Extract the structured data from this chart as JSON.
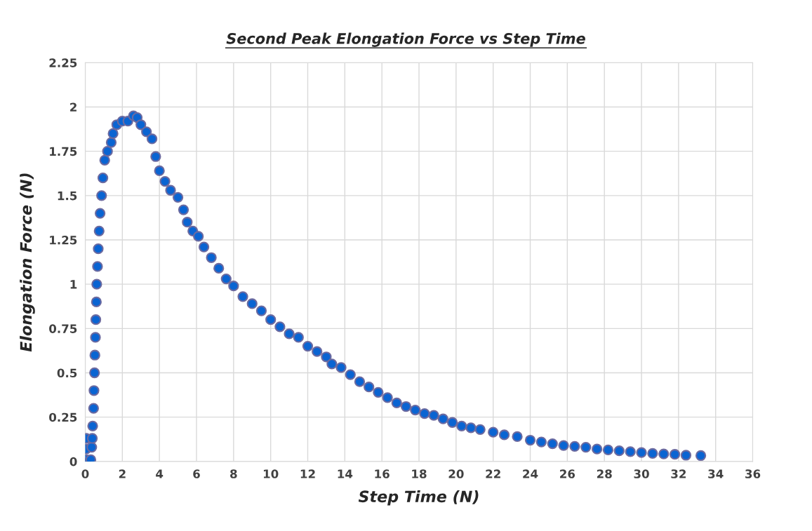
{
  "chart_data": {
    "type": "scatter",
    "title": "Second Peak Elongation Force vs Step Time",
    "xlabel": "Step Time (N)",
    "ylabel": "Elongation Force (N)",
    "xlim": [
      0,
      36
    ],
    "xticks": [
      0,
      2,
      4,
      6,
      8,
      10,
      12,
      14,
      16,
      18,
      20,
      22,
      24,
      26,
      28,
      30,
      32,
      34,
      36
    ],
    "ylim": [
      0,
      2.25
    ],
    "yticks": [
      0,
      0.25,
      0.5,
      0.75,
      1,
      1.25,
      1.5,
      1.75,
      2,
      2.25
    ],
    "grid": true,
    "marker": "circle",
    "series": [
      {
        "color": "#0a64d2",
        "x": [
          0.05,
          0.05,
          0.05,
          0.2,
          0.3,
          0.35,
          0.38,
          0.4,
          0.45,
          0.47,
          0.5,
          0.52,
          0.55,
          0.57,
          0.6,
          0.62,
          0.66,
          0.7,
          0.75,
          0.8,
          0.88,
          0.95,
          1.05,
          1.2,
          1.4,
          1.5,
          1.7,
          2.0,
          2.3,
          2.6,
          2.8,
          3.0,
          3.3,
          3.6,
          3.8,
          4.0,
          4.3,
          4.6,
          5.0,
          5.3,
          5.5,
          5.8,
          6.1,
          6.4,
          6.8,
          7.2,
          7.6,
          8.0,
          8.5,
          9.0,
          9.5,
          10.0,
          10.5,
          11.0,
          11.5,
          12.0,
          12.5,
          13.0,
          13.3,
          13.8,
          14.3,
          14.8,
          15.3,
          15.8,
          16.3,
          16.8,
          17.3,
          17.8,
          18.3,
          18.8,
          19.3,
          19.8,
          20.3,
          20.8,
          21.3,
          22.0,
          22.6,
          23.3,
          24.0,
          24.6,
          25.2,
          25.8,
          26.4,
          27.0,
          27.6,
          28.2,
          28.8,
          29.4,
          30.0,
          30.6,
          31.2,
          31.8,
          32.4,
          33.2
        ],
        "values": [
          0.13,
          0.07,
          0.01,
          0.0,
          0.01,
          0.08,
          0.13,
          0.2,
          0.3,
          0.4,
          0.5,
          0.6,
          0.7,
          0.8,
          0.9,
          1.0,
          1.1,
          1.2,
          1.3,
          1.4,
          1.5,
          1.6,
          1.7,
          1.75,
          1.8,
          1.85,
          1.9,
          1.92,
          1.92,
          1.95,
          1.94,
          1.9,
          1.86,
          1.82,
          1.72,
          1.64,
          1.58,
          1.53,
          1.49,
          1.42,
          1.35,
          1.3,
          1.27,
          1.21,
          1.15,
          1.09,
          1.03,
          0.99,
          0.93,
          0.89,
          0.85,
          0.8,
          0.76,
          0.72,
          0.7,
          0.65,
          0.62,
          0.59,
          0.55,
          0.53,
          0.49,
          0.45,
          0.42,
          0.39,
          0.36,
          0.33,
          0.31,
          0.29,
          0.27,
          0.26,
          0.24,
          0.22,
          0.2,
          0.19,
          0.18,
          0.165,
          0.15,
          0.14,
          0.12,
          0.11,
          0.1,
          0.09,
          0.085,
          0.08,
          0.07,
          0.065,
          0.06,
          0.055,
          0.05,
          0.045,
          0.042,
          0.04,
          0.035,
          0.033
        ]
      }
    ]
  }
}
